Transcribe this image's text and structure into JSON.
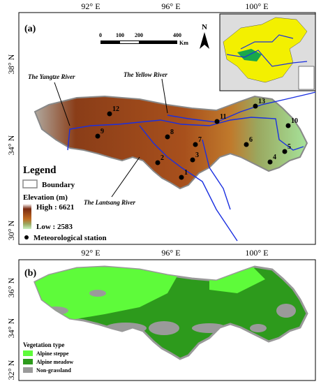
{
  "panel_a": {
    "label": "(a)",
    "top_ticks": [
      "92° E",
      "96° E",
      "100° E"
    ],
    "bottom_ticks": [
      "92° E",
      "96° E",
      "100° E"
    ],
    "left_ticks": [
      "38° N",
      "34° N",
      "30° N"
    ],
    "scale_bar": [
      "0",
      "100",
      "200",
      "400",
      "Km"
    ],
    "north": "N",
    "rivers": [
      "The Yangtze River",
      "The Yellow River",
      "The Lantsang River"
    ],
    "legend": {
      "title": "Legend",
      "boundary": "Boundary",
      "elevation": "Elevation (m)",
      "high": "High : 6621",
      "low": "Low : 2583",
      "station": "Meteorological station"
    },
    "stations": [
      "1",
      "2",
      "3",
      "4",
      "5",
      "6",
      "7",
      "8",
      "9",
      "10",
      "11",
      "12",
      "13"
    ]
  },
  "panel_b": {
    "label": "(b)",
    "left_ticks": [
      "36° N",
      "34° N",
      "32° N"
    ],
    "legend": {
      "title": "Vegetation type",
      "items": [
        "Alpine steppe",
        "Alpine meadow",
        "Non-grassland"
      ]
    }
  }
}
